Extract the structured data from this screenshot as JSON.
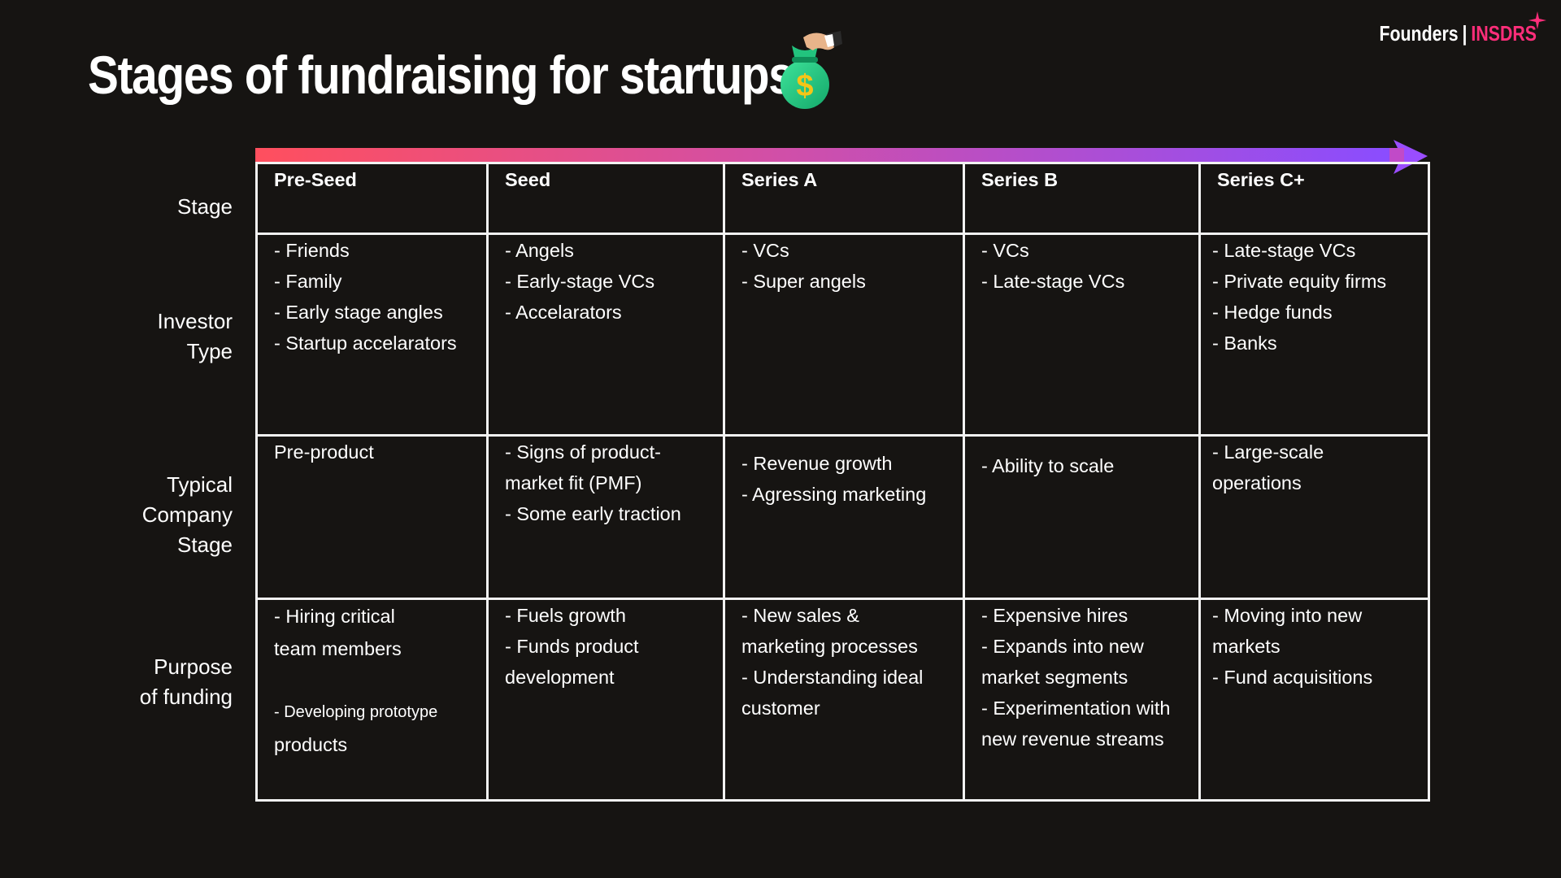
{
  "title": "Stages of fundraising for startups",
  "title_icon": "money-bag-icon",
  "brand": {
    "part1": "Founders",
    "separator": "|",
    "part2": "INSDRS",
    "accent_color": "#ff2e7a"
  },
  "arrow": {
    "start_color": "#ff4f5e",
    "end_color": "#8a4dff"
  },
  "row_labels": {
    "stage": "Stage",
    "investor_type": "Investor\nType",
    "company_stage": "Typical\nCompany\nStage",
    "purpose": "Purpose\nof funding"
  },
  "stages": [
    "Pre-Seed",
    "Seed",
    "Series A",
    "Series B",
    "Series C+"
  ],
  "investor_type": [
    [
      "- Friends",
      "- Family",
      "- Early stage angles",
      "- Startup accelarators"
    ],
    [
      "- Angels",
      "- Early-stage VCs",
      "- Accelarators"
    ],
    [
      "- VCs",
      "- Super angels"
    ],
    [
      "- VCs",
      "- Late-stage VCs"
    ],
    [
      "- Late-stage VCs",
      "- Private equity firms",
      "- Hedge funds",
      "- Banks"
    ]
  ],
  "company_stage": [
    [
      "Pre-product"
    ],
    [
      "- Signs of product-",
      "market fit (PMF)",
      "- Some early traction"
    ],
    [
      "- Revenue growth",
      "- Agressing marketing"
    ],
    [
      "- Ability to scale"
    ],
    [
      "- Large-scale",
      "operations"
    ]
  ],
  "purpose": {
    "preseed": {
      "line1": "- Hiring critical",
      "line2": "team members",
      "line3": "- Developing prototype",
      "line4": "products"
    },
    "others": [
      [
        "- Fuels growth",
        "- Funds product",
        "development"
      ],
      [
        "- New sales &",
        "marketing processes",
        "- Understanding ideal",
        "customer"
      ],
      [
        "- Expensive hires",
        "- Expands into new",
        "market segments",
        "- Experimentation with",
        "new revenue streams"
      ],
      [
        "- Moving into new",
        "markets",
        "- Fund acquisitions"
      ]
    ]
  }
}
